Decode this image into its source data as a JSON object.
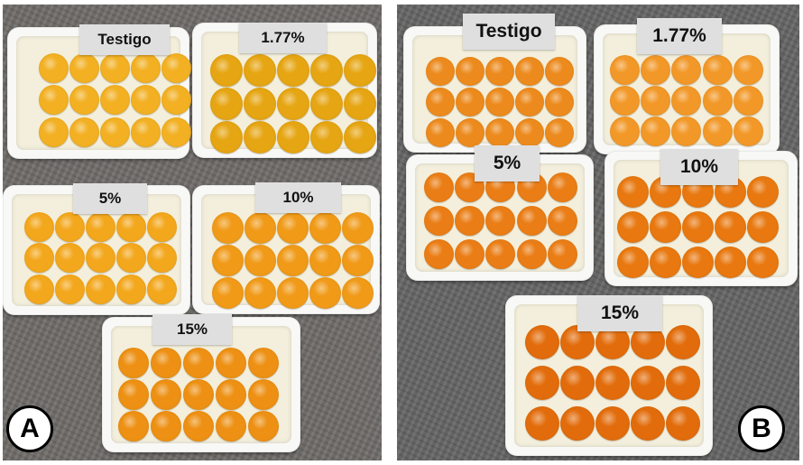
{
  "panels": [
    {
      "letter": "A",
      "trays": [
        {
          "label": "Testigo",
          "yolk_color": "#f2b022"
        },
        {
          "label": "1.77%",
          "yolk_color": "#e6a512"
        },
        {
          "label": "5%",
          "yolk_color": "#f3a71c"
        },
        {
          "label": "10%",
          "yolk_color": "#f09a18"
        },
        {
          "label": "15%",
          "yolk_color": "#ed9013"
        }
      ]
    },
    {
      "letter": "B",
      "trays": [
        {
          "label": "Testigo",
          "yolk_color": "#ec8a1d"
        },
        {
          "label": "1.77%",
          "yolk_color": "#f29828"
        },
        {
          "label": "5%",
          "yolk_color": "#ea7d15"
        },
        {
          "label": "10%",
          "yolk_color": "#e8780f"
        },
        {
          "label": "15%",
          "yolk_color": "#e26c0b"
        }
      ]
    }
  ],
  "colors": {
    "panel_a_background": "#6d6a67",
    "panel_b_background": "#646363",
    "tray": "#f8f8f6",
    "label_background": "#dfdfdf"
  }
}
